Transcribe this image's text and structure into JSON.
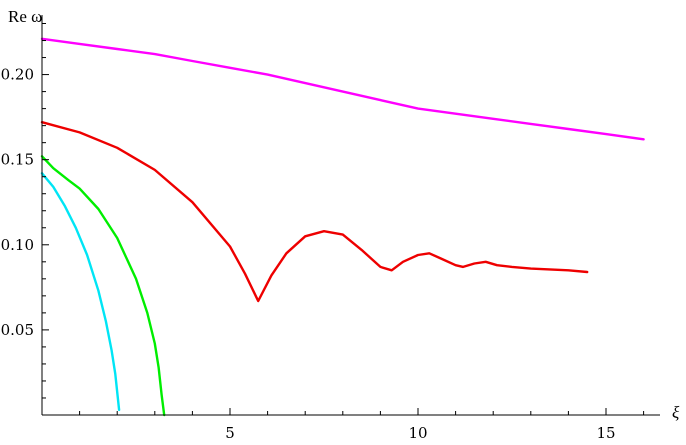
{
  "chart_data": {
    "type": "line",
    "title": "",
    "xlabel": "ξ",
    "ylabel": "Re ω",
    "xlim": [
      0,
      16.5
    ],
    "ylim": [
      0,
      0.235
    ],
    "x_ticks": [
      5,
      10,
      15
    ],
    "y_ticks": [
      0.05,
      0.1,
      0.15,
      0.2
    ],
    "x_tick_labels": [
      "5",
      "10",
      "15"
    ],
    "y_tick_labels": [
      "0.05",
      "0.10",
      "0.15",
      "0.20"
    ],
    "grid": false,
    "legend": "none",
    "series": [
      {
        "color": "#ff00ff",
        "x": [
          0,
          1,
          2,
          3,
          4,
          5,
          6,
          7,
          8,
          9,
          10,
          11,
          12,
          13,
          14,
          15,
          16
        ],
        "y": [
          0.221,
          0.218,
          0.215,
          0.212,
          0.208,
          0.204,
          0.2,
          0.195,
          0.19,
          0.185,
          0.18,
          0.177,
          0.174,
          0.171,
          0.168,
          0.165,
          0.162
        ]
      },
      {
        "color": "#ee0000",
        "x": [
          0,
          1,
          2,
          3,
          4,
          5,
          5.4,
          5.75,
          6.1,
          6.5,
          7,
          7.5,
          8,
          8.5,
          9,
          9.3,
          9.6,
          10,
          10.3,
          10.6,
          11,
          11.2,
          11.5,
          11.8,
          12.1,
          12.5,
          13,
          14,
          14.5
        ],
        "y": [
          0.172,
          0.166,
          0.157,
          0.144,
          0.125,
          0.099,
          0.083,
          0.067,
          0.082,
          0.095,
          0.105,
          0.108,
          0.106,
          0.097,
          0.087,
          0.085,
          0.09,
          0.094,
          0.095,
          0.092,
          0.088,
          0.087,
          0.089,
          0.09,
          0.088,
          0.087,
          0.086,
          0.085,
          0.084
        ]
      },
      {
        "color": "#00ee00",
        "x": [
          0,
          0.3,
          0.7,
          1.0,
          1.5,
          2.0,
          2.5,
          2.8,
          3.0,
          3.1,
          3.18,
          3.25
        ],
        "y": [
          0.152,
          0.145,
          0.138,
          0.133,
          0.121,
          0.104,
          0.08,
          0.06,
          0.042,
          0.028,
          0.012,
          0.0
        ]
      },
      {
        "color": "#00e5f5",
        "x": [
          0,
          0.3,
          0.6,
          0.9,
          1.2,
          1.5,
          1.7,
          1.85,
          1.95,
          2.05
        ],
        "y": [
          0.142,
          0.134,
          0.123,
          0.11,
          0.094,
          0.073,
          0.055,
          0.038,
          0.024,
          0.003
        ]
      }
    ]
  }
}
